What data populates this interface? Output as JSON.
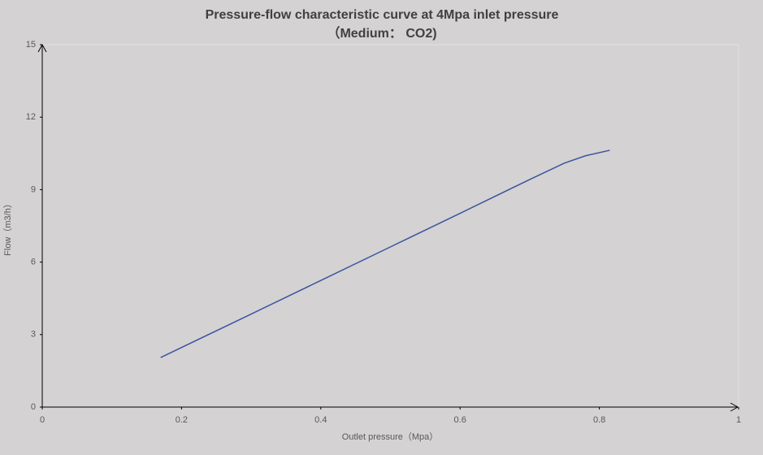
{
  "chart_data": {
    "type": "line",
    "title": "Pressure-flow characteristic curve at 4Mpa inlet pressure",
    "subtitle": "（Medium： CO2)",
    "x_label": "Outlet pressure（Mpa）",
    "y_label": "Flow（m3/h）",
    "x": [
      0.17,
      0.3,
      0.4,
      0.5,
      0.6,
      0.7,
      0.75,
      0.78,
      0.815
    ],
    "series": [
      {
        "color": "#3b55a0",
        "values": [
          2.05,
          3.85,
          5.24,
          6.63,
          8.02,
          9.42,
          10.1,
          10.4,
          10.63
        ]
      }
    ],
    "xlim": [
      0,
      1
    ],
    "xticks": [
      0,
      0.2,
      0.4,
      0.6,
      0.8,
      1
    ],
    "ylim": [
      0,
      15
    ],
    "yticks": [
      0,
      3,
      6,
      9,
      12,
      15
    ]
  }
}
